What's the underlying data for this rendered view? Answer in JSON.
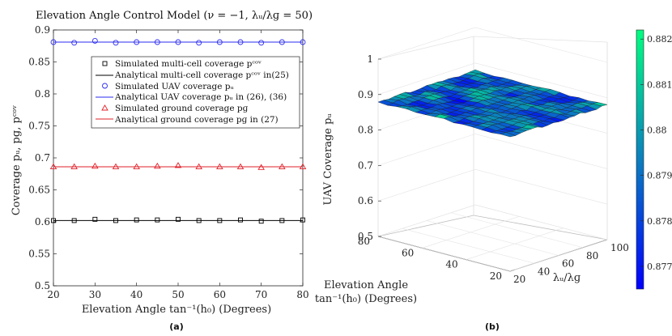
{
  "chart_data": [
    {
      "type": "line",
      "panel_label": "(a)",
      "title": "Elevation Angle Control Model (ν = −1, λᵤ/λɡ = 50)",
      "xlabel": "Elevation Angle tan⁻¹(h₀) (Degrees)",
      "ylabel": "Coverage pᵤ, pɡ, pᶜᵒᵛ",
      "xlim": [
        20,
        80
      ],
      "ylim": [
        0.5,
        0.9
      ],
      "xticks": [
        "20",
        "30",
        "40",
        "50",
        "60",
        "70",
        "80"
      ],
      "yticks": [
        "0.5",
        "0.55",
        "0.6",
        "0.65",
        "0.7",
        "0.75",
        "0.8",
        "0.85",
        "0.9"
      ],
      "x": [
        20,
        25,
        30,
        35,
        40,
        45,
        50,
        55,
        60,
        65,
        70,
        75,
        80
      ],
      "series": [
        {
          "name": "Simulated multi-cell coverage p_cov",
          "legend": "Simulated multi-cell coverage pᶜᵒᵛ",
          "marker": "square",
          "color": "#000000",
          "values": [
            0.602,
            0.602,
            0.604,
            0.602,
            0.603,
            0.603,
            0.604,
            0.602,
            0.602,
            0.603,
            0.601,
            0.602,
            0.603
          ]
        },
        {
          "name": "Analytical multi-cell coverage p_cov in (25)",
          "legend": "Analytical multi-cell coverage pᶜᵒᵛ in(25)",
          "marker": "line",
          "color": "#000000",
          "values": [
            0.602,
            0.602,
            0.602,
            0.602,
            0.602,
            0.602,
            0.602,
            0.602,
            0.602,
            0.602,
            0.602,
            0.602,
            0.602
          ]
        },
        {
          "name": "Simulated UAV coverage p_u",
          "legend": "Simulated UAV coverage pᵤ",
          "marker": "circle",
          "color": "#2b2bf0",
          "values": [
            0.881,
            0.88,
            0.883,
            0.88,
            0.881,
            0.881,
            0.881,
            0.88,
            0.881,
            0.881,
            0.88,
            0.881,
            0.881
          ]
        },
        {
          "name": "Analytical UAV coverage p_u in (26), (36)",
          "legend": "Analytical UAV coverage pᵤ in (26), (36)",
          "marker": "line",
          "color": "#2b2bf0",
          "values": [
            0.881,
            0.881,
            0.881,
            0.881,
            0.881,
            0.881,
            0.881,
            0.881,
            0.881,
            0.881,
            0.881,
            0.881,
            0.881
          ]
        },
        {
          "name": "Simulated ground coverage p_g",
          "legend": "Simulated ground coverage pɡ",
          "marker": "triangle",
          "color": "#e0202a",
          "values": [
            0.686,
            0.686,
            0.687,
            0.686,
            0.686,
            0.687,
            0.688,
            0.686,
            0.686,
            0.686,
            0.685,
            0.686,
            0.686
          ]
        },
        {
          "name": "Analytical ground coverage p_g in (27)",
          "legend": "Analytical ground coverage pɡ in (27)",
          "marker": "line",
          "color": "#e0202a",
          "values": [
            0.686,
            0.686,
            0.686,
            0.686,
            0.686,
            0.686,
            0.686,
            0.686,
            0.686,
            0.686,
            0.686,
            0.686,
            0.686
          ]
        }
      ]
    },
    {
      "type": "surface",
      "panel_label": "(b)",
      "zlabel": "UAV Coverage pᵤ",
      "xlabel": "λᵤ/λɡ",
      "ylabel_line1": "Elevation Angle",
      "ylabel_line2": "tan⁻¹(h₀) (Degrees)",
      "x_range": [
        20,
        100
      ],
      "y_range": [
        20,
        80
      ],
      "z_range": [
        0.5,
        1.0
      ],
      "xticks": [
        "20",
        "40",
        "60",
        "80",
        "100"
      ],
      "yticks": [
        "20",
        "40",
        "60",
        "80"
      ],
      "zticks": [
        "0.5",
        "0.6",
        "0.7",
        "0.8",
        "0.9",
        "1"
      ],
      "z_mean": 0.879,
      "colorbar": {
        "min": 0.8765,
        "max": 0.8822,
        "ticks": [
          "0.882",
          "0.881",
          "0.88",
          "0.879",
          "0.878",
          "0.877"
        ],
        "low_color": "#0000ff",
        "high_color": "#00ff80"
      }
    }
  ]
}
